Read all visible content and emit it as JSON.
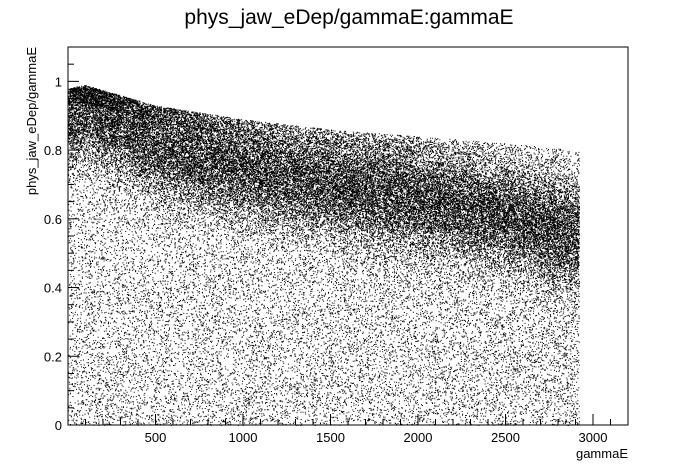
{
  "chart_data": {
    "type": "scatter",
    "title": "phys_jaw_eDep/gammaE:gammaE",
    "xlabel": "gammaE",
    "ylabel": "phys_jaw_eDep/gammaE",
    "xlim": [
      0,
      3200
    ],
    "ylim": [
      0,
      1.1
    ],
    "x_ticks": [
      "500",
      "1000",
      "1500",
      "2000",
      "2500",
      "3000"
    ],
    "y_ticks": [
      "0",
      "0.2",
      "0.4",
      "0.6",
      "0.8",
      "1"
    ],
    "x_tick_values": [
      500,
      1000,
      1500,
      2000,
      2500,
      3000
    ],
    "y_tick_values": [
      0,
      0.2,
      0.4,
      0.6,
      0.8,
      1.0
    ],
    "x_data_range": [
      0,
      2920
    ],
    "grid": false,
    "marker_color": "#000000",
    "density_ridge": [
      {
        "x": 0,
        "y": 0.9
      },
      {
        "x": 100,
        "y": 0.93
      },
      {
        "x": 500,
        "y": 0.82
      },
      {
        "x": 1000,
        "y": 0.75
      },
      {
        "x": 1500,
        "y": 0.7
      },
      {
        "x": 2000,
        "y": 0.66
      },
      {
        "x": 2500,
        "y": 0.61
      },
      {
        "x": 2900,
        "y": 0.55
      }
    ],
    "upper_envelope": [
      {
        "x": 0,
        "y": 0.98
      },
      {
        "x": 100,
        "y": 0.99
      },
      {
        "x": 500,
        "y": 0.93
      },
      {
        "x": 1000,
        "y": 0.89
      },
      {
        "x": 1500,
        "y": 0.86
      },
      {
        "x": 2000,
        "y": 0.84
      },
      {
        "x": 2500,
        "y": 0.82
      },
      {
        "x": 2900,
        "y": 0.8
      }
    ]
  }
}
